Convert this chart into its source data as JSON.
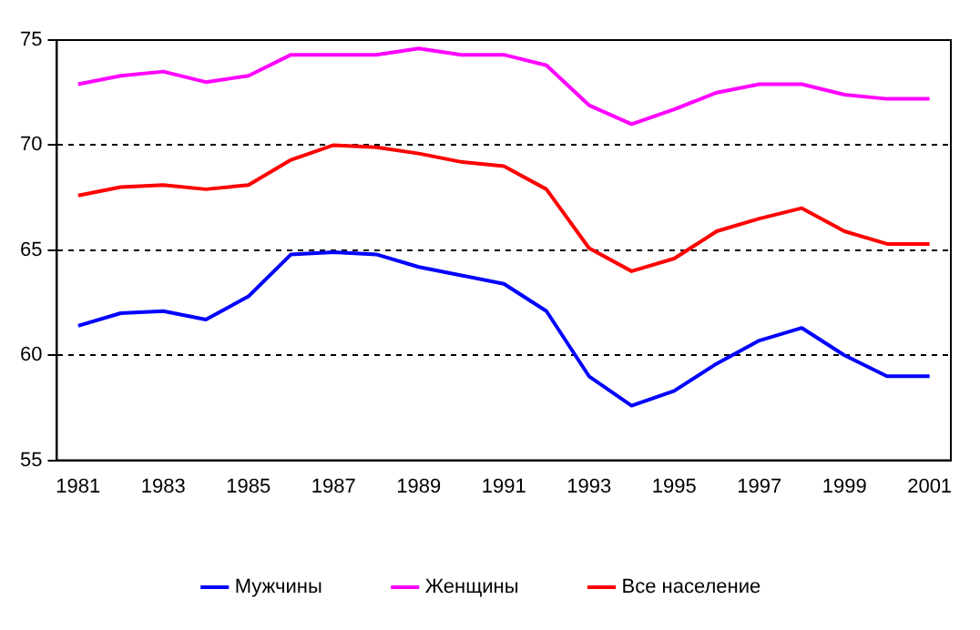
{
  "chart_data": {
    "type": "line",
    "categories": [
      "1981",
      null,
      "1983",
      null,
      "1985",
      null,
      "1987",
      null,
      "1989",
      null,
      "1991",
      null,
      "1993",
      null,
      "1995",
      null,
      "1997",
      null,
      "1999",
      null,
      "2001"
    ],
    "series": [
      {
        "name": "Мужчины",
        "color": "#0000ff",
        "values": [
          61.4,
          62.0,
          62.1,
          61.7,
          62.8,
          64.8,
          64.9,
          64.8,
          64.2,
          63.8,
          63.4,
          62.1,
          59.0,
          57.6,
          58.3,
          59.6,
          60.7,
          61.3,
          60.0,
          59.0,
          59.0
        ]
      },
      {
        "name": "Женщины",
        "color": "#ff00ff",
        "values": [
          72.9,
          73.3,
          73.5,
          73.0,
          73.3,
          74.3,
          74.3,
          74.3,
          74.6,
          74.3,
          74.3,
          73.8,
          71.9,
          71.0,
          71.7,
          72.5,
          72.9,
          72.9,
          72.4,
          72.2,
          72.2
        ]
      },
      {
        "name": "Все население",
        "color": "#ff0000",
        "values": [
          67.6,
          68.0,
          68.1,
          67.9,
          68.1,
          69.3,
          70.0,
          69.9,
          69.6,
          69.2,
          69.0,
          67.9,
          65.1,
          64.0,
          64.6,
          65.9,
          66.5,
          67.0,
          65.9,
          65.3,
          65.3
        ]
      }
    ],
    "ylim": [
      55,
      75
    ],
    "yticks": [
      55,
      60,
      65,
      70,
      75
    ],
    "grid": "y",
    "legend": "bottom",
    "marker": "none",
    "line_style": "solid"
  }
}
